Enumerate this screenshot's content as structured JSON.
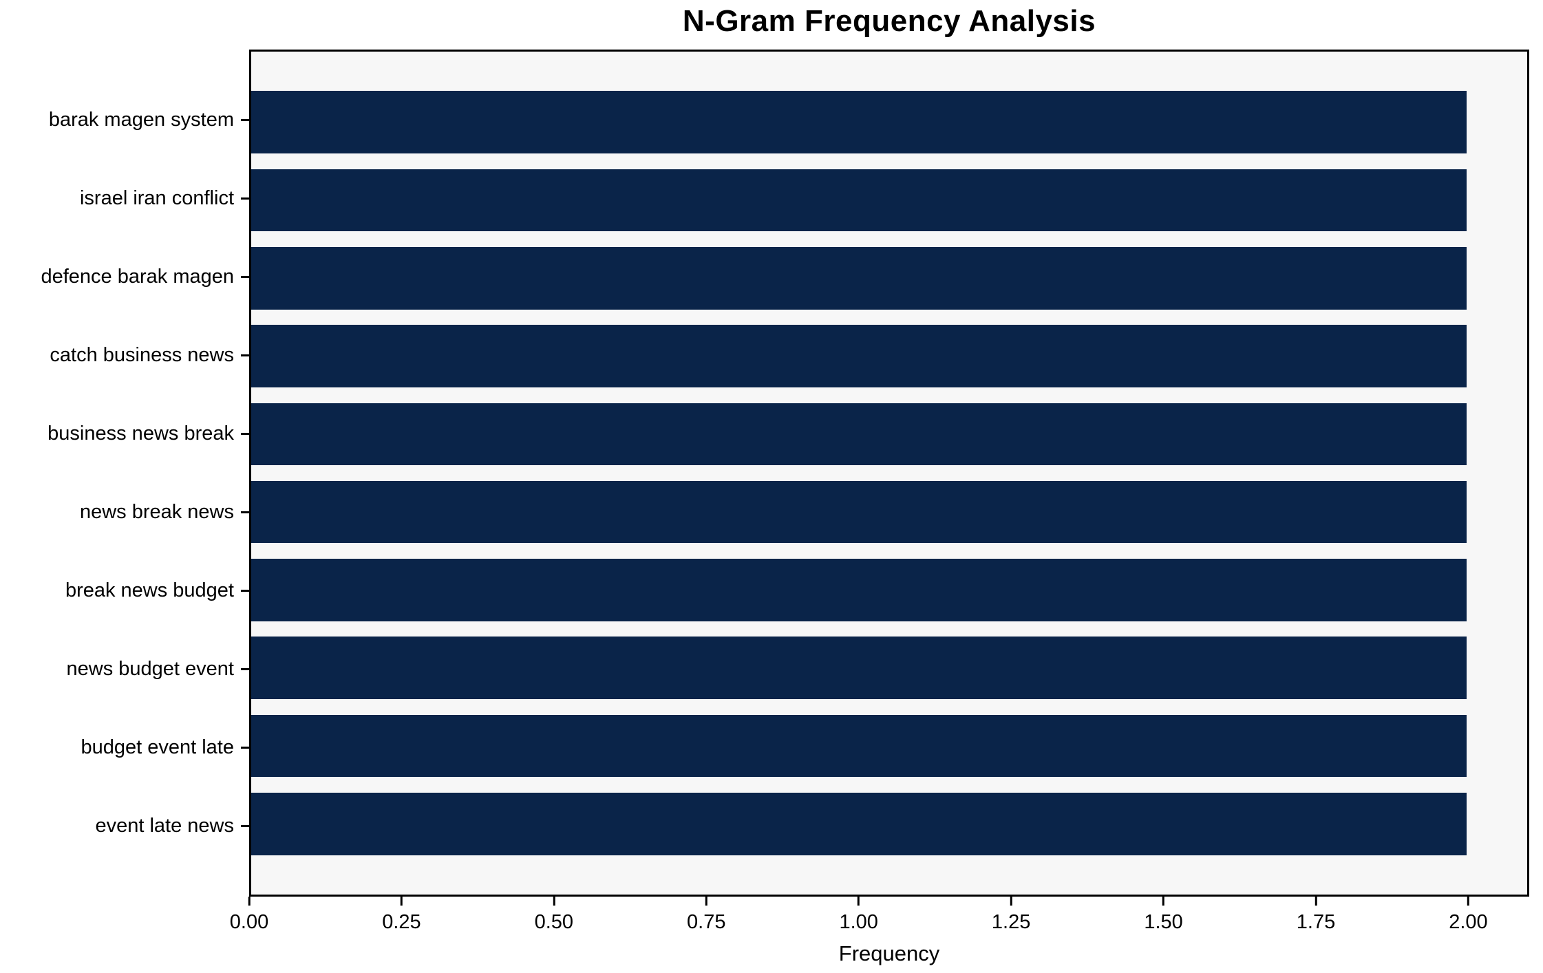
{
  "page": {
    "background": "#ffffff"
  },
  "chart_data": {
    "type": "bar",
    "orientation": "horizontal",
    "title": "N-Gram Frequency Analysis",
    "xlabel": "Frequency",
    "ylabel": "",
    "categories": [
      "barak magen system",
      "israel iran conflict",
      "defence barak magen",
      "catch business news",
      "business news break",
      "news break news",
      "break news budget",
      "news budget event",
      "budget event late",
      "event late news"
    ],
    "values": [
      2,
      2,
      2,
      2,
      2,
      2,
      2,
      2,
      2,
      2
    ],
    "xticks": [
      "0.00",
      "0.25",
      "0.50",
      "0.75",
      "1.00",
      "1.25",
      "1.50",
      "1.75",
      "2.00"
    ],
    "xlim": [
      0,
      2.1
    ],
    "bar_color": "#0a2449",
    "plot_background": "#f7f7f7",
    "axis_color": "#000000",
    "grid": false,
    "legend": "none"
  }
}
